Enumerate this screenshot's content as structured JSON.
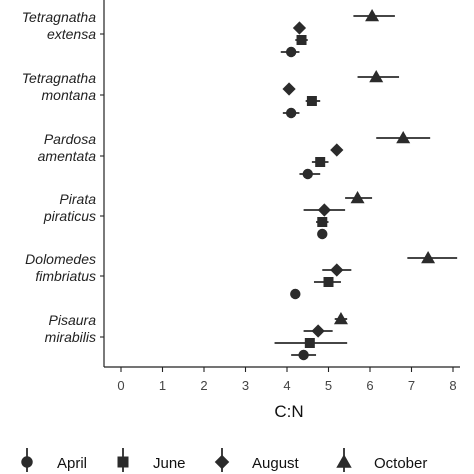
{
  "chart_data": {
    "type": "scatter",
    "title": "",
    "xlabel": "C:N",
    "ylabel": "",
    "xlim": [
      0,
      8
    ],
    "x_ticks": [
      "0",
      "1",
      "2",
      "3",
      "4",
      "5",
      "6",
      "7",
      "8"
    ],
    "grid": false,
    "legend_position": "bottom",
    "categories": [
      [
        "Tetragnatha",
        "extensa"
      ],
      [
        "Tetragnatha",
        "montana"
      ],
      [
        "Pardosa",
        "amentata"
      ],
      [
        "Pirata",
        "piraticus"
      ],
      [
        "Dolomedes",
        "fimbriatus"
      ],
      [
        "Pisaura",
        "mirabilis"
      ]
    ],
    "series": [
      {
        "name": "April",
        "shape": "circle",
        "points": [
          {
            "x": 4.1,
            "lo": 3.85,
            "hi": 4.3
          },
          {
            "x": 4.1,
            "lo": 3.9,
            "hi": 4.3
          },
          {
            "x": 4.5,
            "lo": 4.3,
            "hi": 4.8
          },
          {
            "x": 4.85,
            "lo": 4.75,
            "hi": 4.95
          },
          {
            "x": 4.2,
            "lo": 4.15,
            "hi": 4.25
          },
          {
            "x": 4.4,
            "lo": 4.1,
            "hi": 4.7
          }
        ]
      },
      {
        "name": "June",
        "shape": "square",
        "points": [
          {
            "x": 4.35,
            "lo": 4.2,
            "hi": 4.5
          },
          {
            "x": 4.6,
            "lo": 4.45,
            "hi": 4.8
          },
          {
            "x": 4.8,
            "lo": 4.6,
            "hi": 5.0
          },
          {
            "x": 4.85,
            "lo": 4.7,
            "hi": 5.0
          },
          {
            "x": 5.0,
            "lo": 4.65,
            "hi": 5.3
          },
          {
            "x": 4.55,
            "lo": 3.7,
            "hi": 5.45
          }
        ]
      },
      {
        "name": "August",
        "shape": "diamond",
        "points": [
          {
            "x": 4.3,
            "lo": 4.25,
            "hi": 4.35
          },
          {
            "x": 4.05,
            "lo": 4.0,
            "hi": 4.1
          },
          {
            "x": 5.2,
            "lo": 5.1,
            "hi": 5.3
          },
          {
            "x": 4.9,
            "lo": 4.4,
            "hi": 5.4
          },
          {
            "x": 5.2,
            "lo": 4.85,
            "hi": 5.55
          },
          {
            "x": 4.75,
            "lo": 4.4,
            "hi": 5.1
          }
        ]
      },
      {
        "name": "October",
        "shape": "triangle",
        "points": [
          {
            "x": 6.05,
            "lo": 5.6,
            "hi": 6.6
          },
          {
            "x": 6.15,
            "lo": 5.7,
            "hi": 6.7
          },
          {
            "x": 6.8,
            "lo": 6.15,
            "hi": 7.45
          },
          {
            "x": 5.7,
            "lo": 5.4,
            "hi": 6.05
          },
          {
            "x": 7.4,
            "lo": 6.9,
            "hi": 8.1
          },
          {
            "x": 5.3,
            "lo": 5.15,
            "hi": 5.45
          }
        ]
      }
    ],
    "colors": {
      "marker": "#2b2b2b",
      "axis": "#222222",
      "text": "#111111"
    }
  }
}
